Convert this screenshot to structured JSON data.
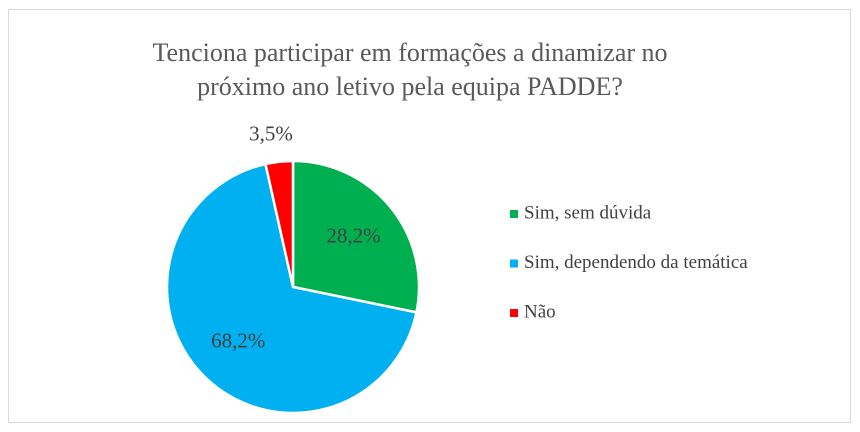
{
  "chart_data": {
    "type": "pie",
    "title": "Tenciona participar em formações a dinamizar no próximo ano letivo pela equipa PADDE?",
    "categories": [
      "Sim, sem dúvida",
      "Sim, dependendo da temática",
      "Não"
    ],
    "values": [
      28.2,
      68.2,
      3.5
    ],
    "value_labels": [
      "28,2%",
      "68,2%",
      "3,5%"
    ],
    "colors": [
      "#00b050",
      "#00b0f0",
      "#ff0000"
    ],
    "legend": "right"
  }
}
